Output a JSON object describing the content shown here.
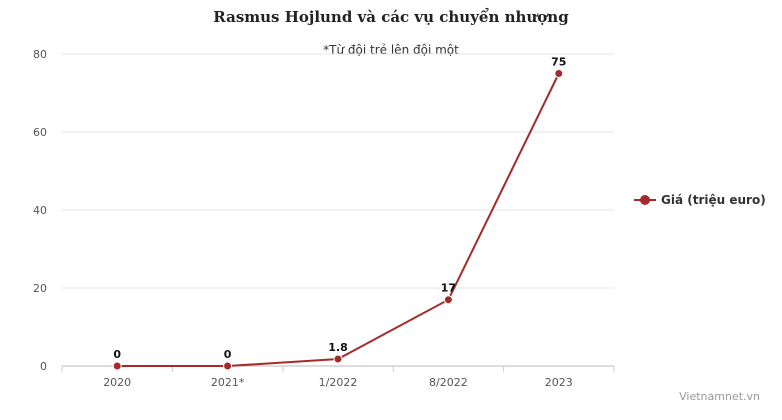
{
  "chart_data": {
    "type": "line",
    "title": "Rasmus Hojlund và các vụ chuyển nhượng",
    "subtitle": "*Từ đội trẻ lên đội một",
    "categories": [
      "2020",
      "2021*",
      "1/2022",
      "8/2022",
      "2023"
    ],
    "series": [
      {
        "name": "Giá (triệu euro)",
        "values": [
          0,
          0,
          1.8,
          17,
          75
        ],
        "data_labels": [
          "0",
          "0",
          "1.8",
          "17",
          "75"
        ],
        "color": "#a52a2a"
      }
    ],
    "ylim": [
      0,
      80
    ],
    "y_ticks": [
      0,
      20,
      40,
      60,
      80
    ],
    "grid": true,
    "legend_position": "right",
    "xlabel": "",
    "ylabel": ""
  },
  "credit": "Vietnamnet.vn"
}
